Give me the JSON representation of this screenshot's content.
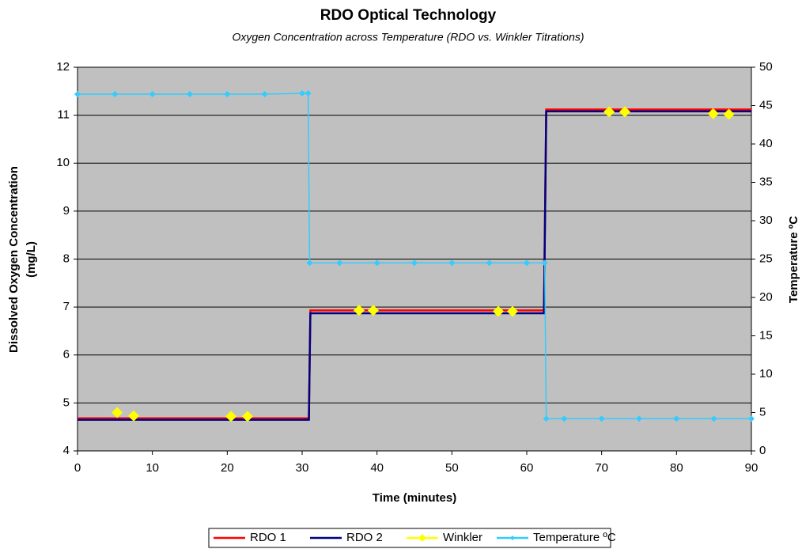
{
  "chart_data": {
    "type": "line",
    "title": "RDO Optical Technology",
    "subtitle": "Oxygen Concentration across Temperature (RDO vs. Winkler Titrations)",
    "xlabel": "Time (minutes)",
    "ylabel": [
      "Dissolved Oxygen Concentration",
      "(mg/L)"
    ],
    "y2label": "Temperature ºC",
    "xlim": [
      0,
      90
    ],
    "xticks": [
      0,
      10,
      20,
      30,
      40,
      50,
      60,
      70,
      80,
      90
    ],
    "ylim": [
      4,
      12
    ],
    "yticks": [
      4,
      5,
      6,
      7,
      8,
      9,
      10,
      11,
      12
    ],
    "y2lim": [
      0,
      50
    ],
    "y2ticks": [
      0,
      5,
      10,
      15,
      20,
      25,
      30,
      35,
      40,
      45,
      50
    ],
    "grid": true,
    "legend": "bottom",
    "series": [
      {
        "name": "RDO 1",
        "color": "#ff0000",
        "marker": false,
        "line": true,
        "x": [
          0,
          30.9,
          31.1,
          62.3,
          62.6,
          90
        ],
        "values": [
          4.68,
          4.68,
          6.93,
          6.93,
          11.12,
          11.12
        ]
      },
      {
        "name": "RDO 2",
        "color": "#000080",
        "marker": false,
        "line": true,
        "x": [
          0,
          30.9,
          31.1,
          62.3,
          62.6,
          90
        ],
        "values": [
          4.65,
          4.65,
          6.87,
          6.87,
          11.08,
          11.08
        ]
      },
      {
        "name": "Winkler",
        "color": "#ffff00",
        "marker": true,
        "line": false,
        "x": [
          5.3,
          7.5,
          20.5,
          22.7,
          37.6,
          39.5,
          56.2,
          58.1,
          71,
          73.1,
          84.9,
          87
        ],
        "values": [
          4.8,
          4.73,
          4.72,
          4.72,
          6.93,
          6.93,
          6.91,
          6.91,
          11.07,
          11.07,
          11.03,
          11.02
        ]
      },
      {
        "name": "Temperature ºC",
        "color": "#33ccff",
        "marker": true,
        "line": true,
        "axis": "y2",
        "x": [
          0,
          5,
          10,
          15,
          20,
          25,
          30,
          30.8,
          31,
          35,
          40,
          45,
          50,
          55,
          60,
          62.4,
          62.6,
          65,
          70,
          75,
          80,
          85,
          90
        ],
        "values": [
          46.5,
          46.5,
          46.5,
          46.5,
          46.5,
          46.5,
          46.6,
          46.6,
          24.5,
          24.5,
          24.5,
          24.5,
          24.5,
          24.5,
          24.5,
          24.5,
          4.2,
          4.2,
          4.2,
          4.2,
          4.2,
          4.2,
          4.2
        ]
      }
    ]
  }
}
